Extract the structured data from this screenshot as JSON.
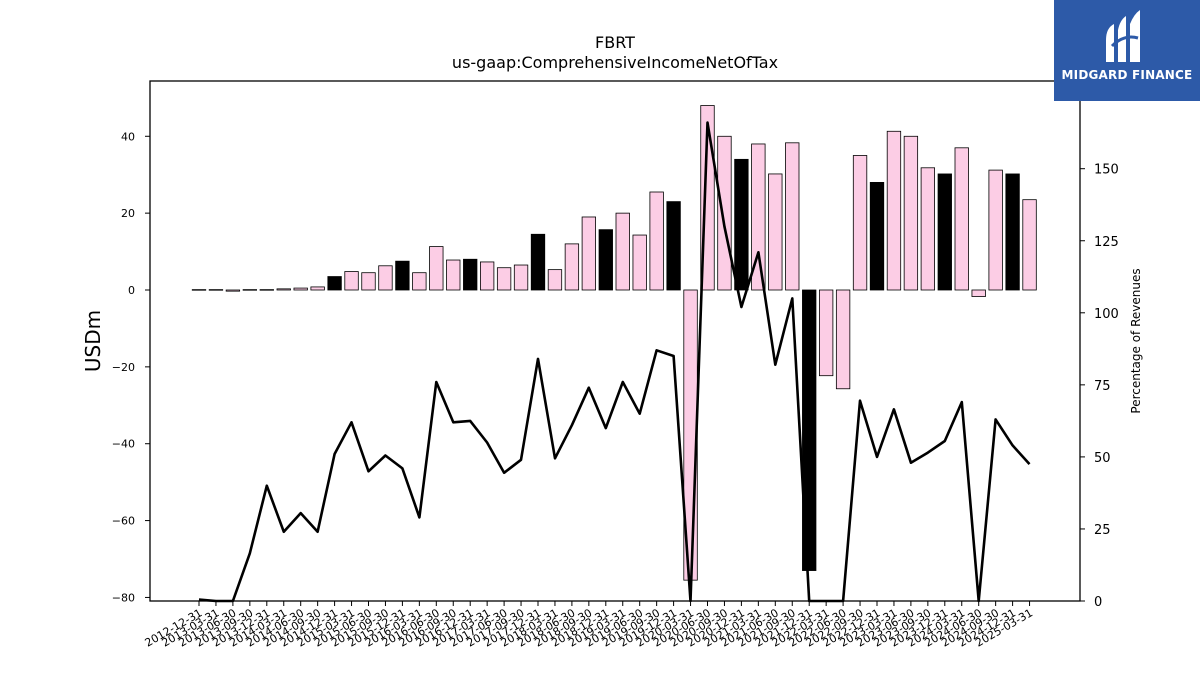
{
  "logo": {
    "text": "MIDGARD FINANCE"
  },
  "colors": {
    "bar_positive": "#fccde5",
    "bar_q4": "#000000",
    "line": "#000000",
    "logo_bg": "#2d5aa8"
  },
  "chart_data": {
    "type": "bar",
    "title": "FBRT",
    "subtitle": "us-gaap:ComprehensiveIncomeNetOfTax",
    "ylabel": "USDm",
    "y2label": "Percentage of Revenues",
    "ylim": [
      -81,
      54
    ],
    "y2lim": [
      0,
      180
    ],
    "yticks": [
      -80,
      -60,
      -40,
      -20,
      0,
      20,
      40
    ],
    "y2ticks": [
      0,
      25,
      50,
      75,
      100,
      125,
      150
    ],
    "grid": false,
    "categories": [
      "2012-12-31",
      "2013-03-31",
      "2013-06-30",
      "2013-09-30",
      "2013-12-31",
      "2014-03-31",
      "2014-06-30",
      "2014-09-30",
      "2014-12-31",
      "2015-03-31",
      "2015-06-30",
      "2015-09-30",
      "2015-12-31",
      "2016-03-31",
      "2016-06-30",
      "2016-09-30",
      "2016-12-31",
      "2017-03-31",
      "2017-06-30",
      "2017-09-30",
      "2017-12-31",
      "2018-03-31",
      "2018-06-30",
      "2018-09-30",
      "2018-12-31",
      "2019-03-31",
      "2019-06-30",
      "2019-09-30",
      "2019-12-31",
      "2020-03-31",
      "2020-06-30",
      "2020-09-30",
      "2020-12-31",
      "2021-03-31",
      "2021-06-30",
      "2021-09-30",
      "2021-12-31",
      "2022-03-31",
      "2022-06-30",
      "2022-09-30",
      "2022-12-31",
      "2023-03-31",
      "2023-06-30",
      "2023-09-30",
      "2023-12-31",
      "2024-03-31",
      "2024-06-30",
      "2024-09-30",
      "2024-12-31",
      "2025-03-31"
    ],
    "series": [
      {
        "type": "bar",
        "values": [
          0.1,
          0.1,
          -0.3,
          0.1,
          0.1,
          0.3,
          0.5,
          0.8,
          3.5,
          4.8,
          4.5,
          6.3,
          7.5,
          4.5,
          11.3,
          7.8,
          8.0,
          7.3,
          5.8,
          6.5,
          14.5,
          5.3,
          12.0,
          19.0,
          15.7,
          20.0,
          14.3,
          25.5,
          23.0,
          -75.5,
          48.0,
          40.0,
          34.0,
          38.0,
          30.2,
          38.3,
          -73.0,
          -22.3,
          -25.7,
          35.0,
          28.0,
          41.3,
          40.0,
          31.8,
          30.2,
          37.0,
          -1.7,
          31.2,
          30.2,
          23.5
        ]
      },
      {
        "type": "line",
        "axis": "right",
        "values": [
          null,
          null,
          null,
          null,
          null,
          null,
          null,
          null,
          null,
          null,
          null,
          null,
          null,
          null,
          null,
          null,
          null,
          null,
          null,
          null,
          null,
          null,
          null,
          null,
          null,
          null,
          null,
          null,
          null,
          null,
          null,
          null,
          null,
          null,
          null,
          null,
          null,
          null,
          null,
          null,
          null,
          null,
          null,
          null,
          null,
          null,
          null,
          null,
          null,
          null
        ]
      }
    ],
    "line_values": [
      0.5,
      0,
      0,
      16.5,
      40,
      24,
      30.5,
      24,
      51,
      62,
      45,
      50.5,
      46,
      29,
      76,
      62,
      62.5,
      55,
      44.5,
      49,
      84,
      49.5,
      61,
      74,
      60,
      76,
      65,
      87,
      85,
      0,
      166,
      130,
      102,
      121,
      82,
      105,
      0,
      0,
      0,
      69.5,
      50,
      66.5,
      48,
      51.5,
      55.5,
      69,
      0,
      63,
      54,
      47.5
    ]
  }
}
